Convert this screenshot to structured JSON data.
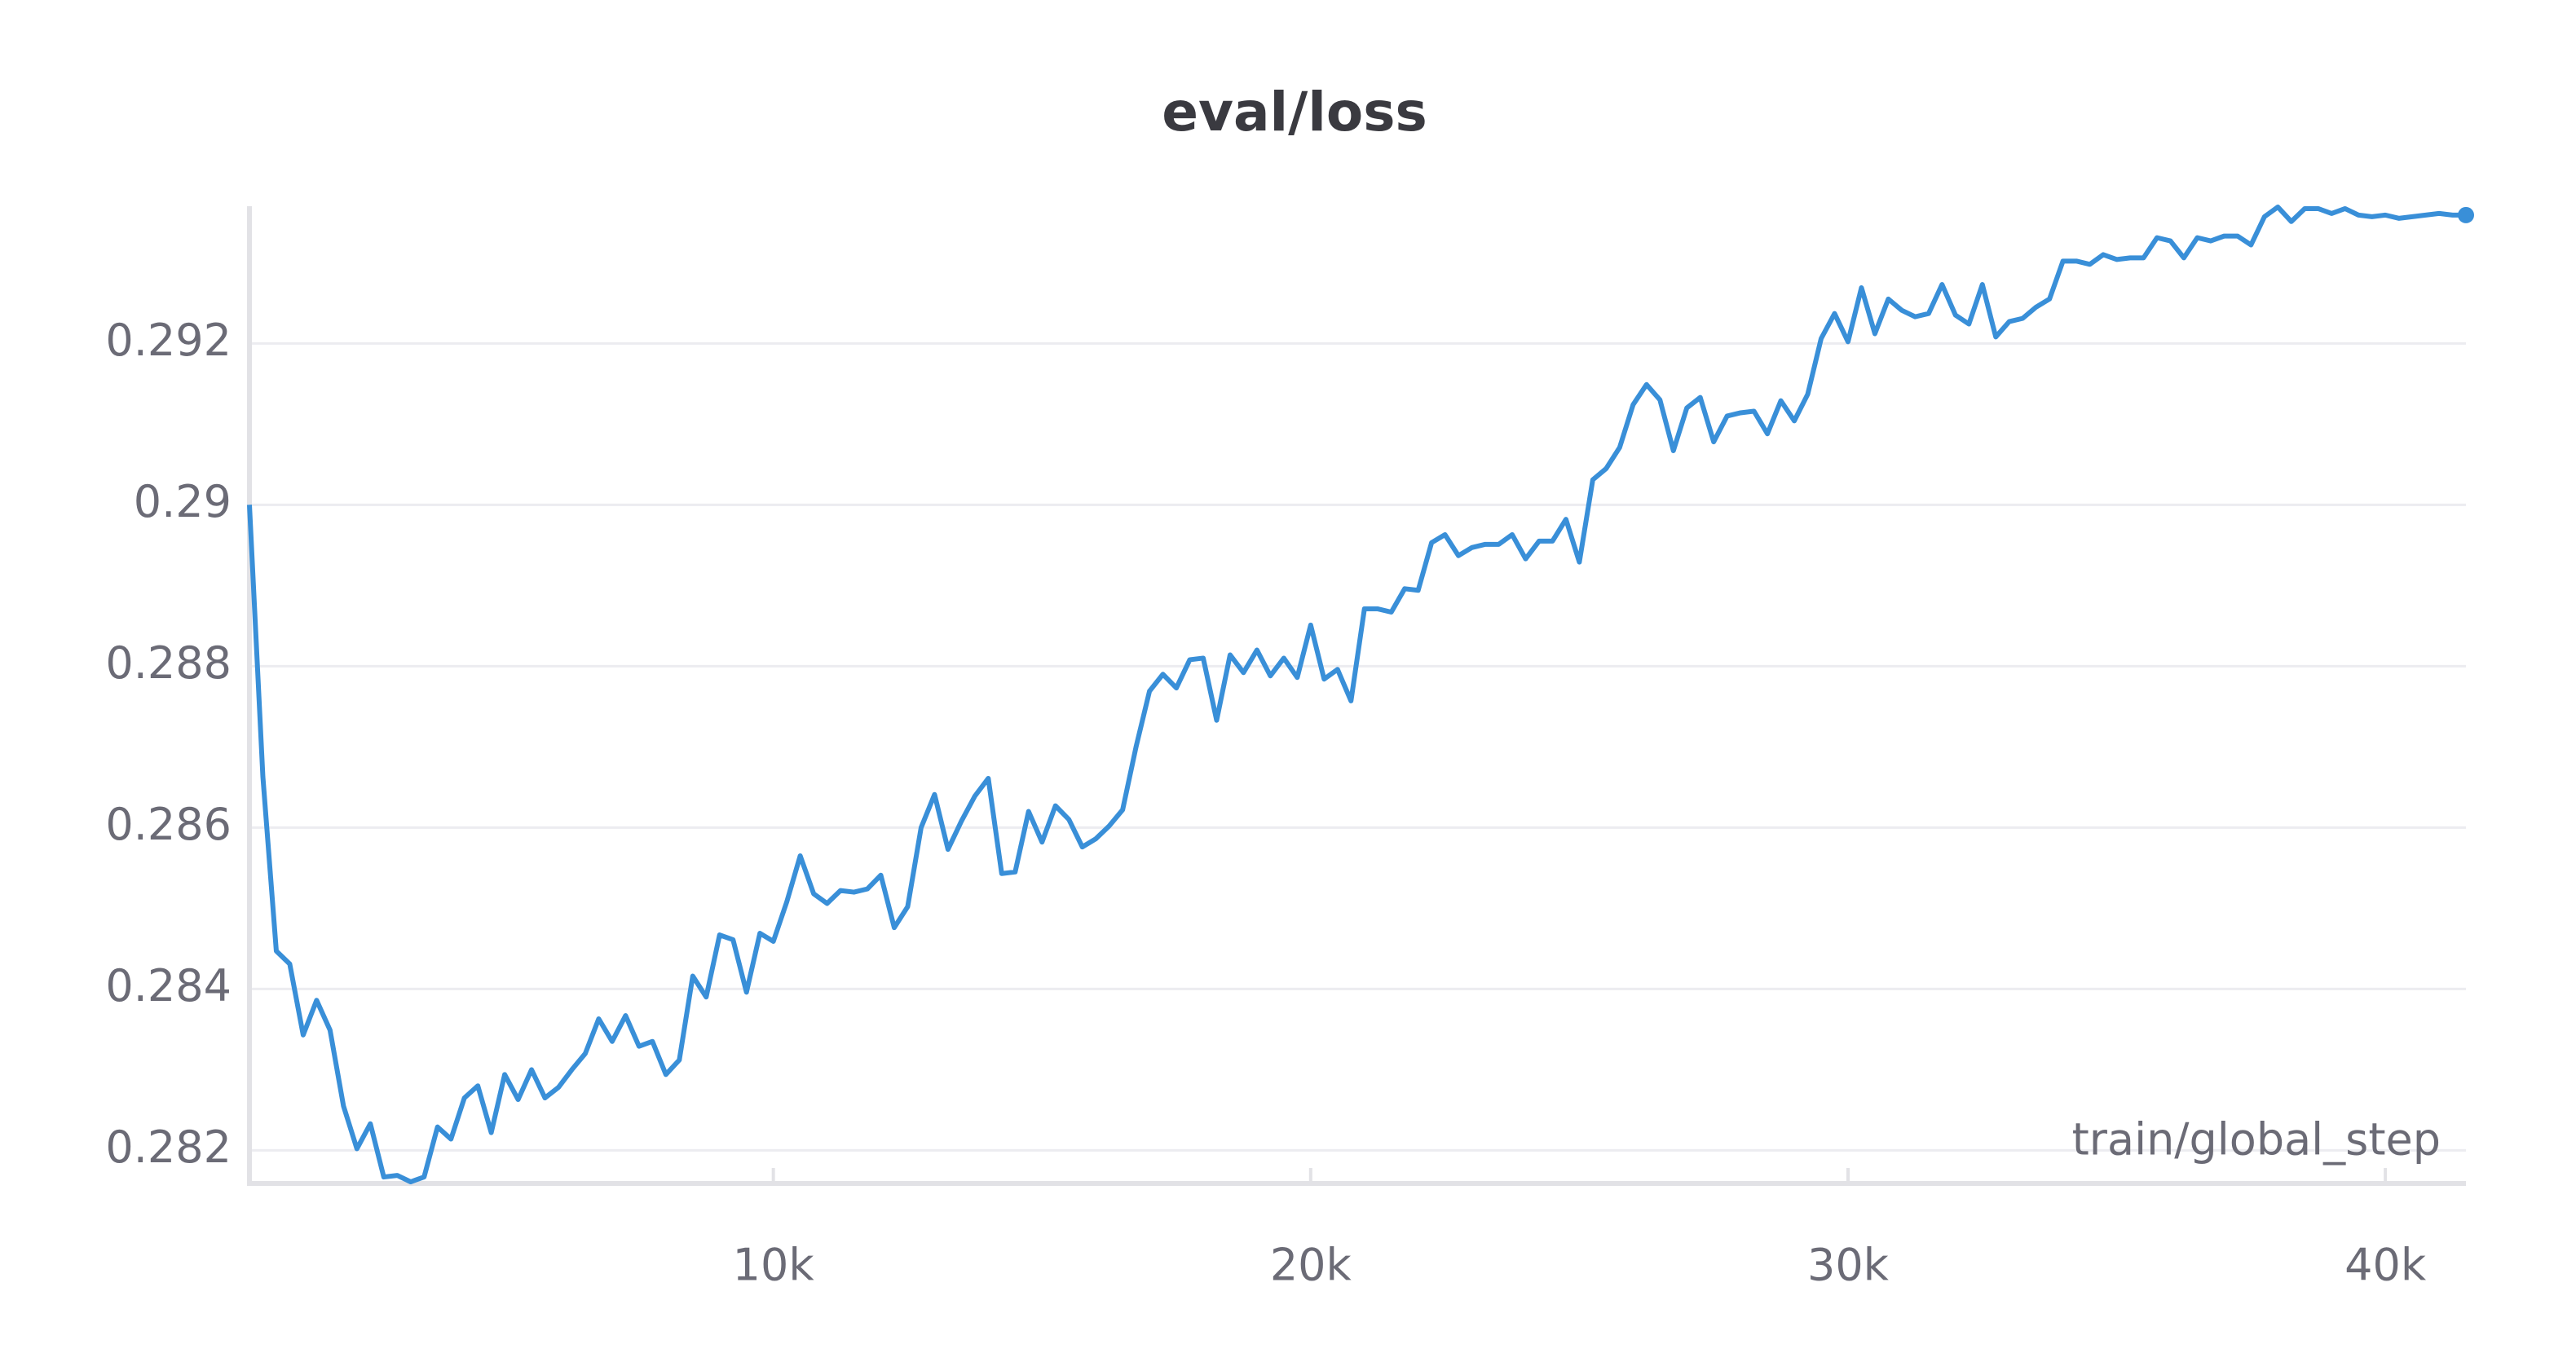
{
  "chart_data": {
    "type": "line",
    "title": "eval/loss",
    "x_label": "train/global_step",
    "x": [
      250,
      500,
      750,
      1000,
      1250,
      1500,
      1750,
      2000,
      2250,
      2500,
      2750,
      3000,
      3250,
      3500,
      3750,
      4000,
      4250,
      4500,
      4750,
      5000,
      5250,
      5500,
      5750,
      6000,
      6250,
      6500,
      6750,
      7000,
      7250,
      7500,
      7750,
      8000,
      8250,
      8500,
      8750,
      9000,
      9250,
      9500,
      9750,
      10000,
      10250,
      10500,
      10750,
      11000,
      11250,
      11500,
      11750,
      12000,
      12250,
      12500,
      12750,
      13000,
      13250,
      13500,
      13750,
      14000,
      14250,
      14500,
      14750,
      15000,
      15250,
      15500,
      15750,
      16000,
      16250,
      16500,
      16750,
      17000,
      17250,
      17500,
      17750,
      18000,
      18250,
      18500,
      18750,
      19000,
      19250,
      19500,
      19750,
      20000,
      20250,
      20500,
      20750,
      21000,
      21250,
      21500,
      21750,
      22000,
      22250,
      22500,
      22750,
      23000,
      23250,
      23500,
      23750,
      24000,
      24250,
      24500,
      24750,
      25000,
      25250,
      25500,
      25750,
      26000,
      26250,
      26500,
      26750,
      27000,
      27250,
      27500,
      27750,
      28000,
      28250,
      28500,
      28750,
      29000,
      29250,
      29500,
      29750,
      30000,
      30250,
      30500,
      30750,
      31000,
      31250,
      31500,
      31750,
      32000,
      32250,
      32500,
      32750,
      33000,
      33250,
      33500,
      33750,
      34000,
      34250,
      34500,
      34750,
      35000,
      35250,
      35500,
      35750,
      36000,
      36250,
      36500,
      36750,
      37000,
      37250,
      37500,
      37750,
      38000,
      38250,
      38500,
      38750,
      39000,
      39250,
      39500,
      39750,
      40000,
      40250,
      40500,
      40750,
      41000,
      41250,
      41500
    ],
    "series": [
      {
        "name": "eval/loss",
        "color": "#398fd8",
        "values": [
          0.29,
          0.28663,
          0.28447,
          0.28431,
          0.28343,
          0.28386,
          0.28349,
          0.28255,
          0.28202,
          0.28233,
          0.28167,
          0.28169,
          0.28161,
          0.28167,
          0.28229,
          0.28214,
          0.28265,
          0.2828,
          0.28222,
          0.28294,
          0.28263,
          0.283,
          0.28265,
          0.28278,
          0.283,
          0.2832,
          0.28363,
          0.28335,
          0.28367,
          0.28329,
          0.28335,
          0.28294,
          0.28312,
          0.28416,
          0.2839,
          0.28467,
          0.28461,
          0.28396,
          0.28469,
          0.28459,
          0.28508,
          0.28565,
          0.28518,
          0.28506,
          0.28522,
          0.2852,
          0.28524,
          0.28541,
          0.28476,
          0.28502,
          0.286,
          0.28641,
          0.28573,
          0.28608,
          0.28639,
          0.28661,
          0.28543,
          0.28545,
          0.2862,
          0.28582,
          0.28627,
          0.2861,
          0.28576,
          0.28586,
          0.28602,
          0.28622,
          0.287,
          0.28769,
          0.2879,
          0.28773,
          0.28808,
          0.2881,
          0.28733,
          0.28814,
          0.28792,
          0.2882,
          0.28788,
          0.2881,
          0.28786,
          0.28851,
          0.28784,
          0.28796,
          0.28757,
          0.28871,
          0.28871,
          0.28867,
          0.28896,
          0.28894,
          0.28953,
          0.28963,
          0.28937,
          0.28947,
          0.28951,
          0.28951,
          0.28963,
          0.28933,
          0.28955,
          0.28955,
          0.28982,
          0.28929,
          0.29031,
          0.29045,
          0.29071,
          0.29124,
          0.29149,
          0.2913,
          0.29067,
          0.2912,
          0.29133,
          0.29078,
          0.2911,
          0.29114,
          0.29116,
          0.29088,
          0.29129,
          0.29104,
          0.29137,
          0.29206,
          0.29237,
          0.29202,
          0.29269,
          0.29212,
          0.29255,
          0.29241,
          0.29233,
          0.29237,
          0.29273,
          0.29235,
          0.29224,
          0.29273,
          0.29208,
          0.29227,
          0.29231,
          0.29245,
          0.29255,
          0.29302,
          0.29302,
          0.29298,
          0.2931,
          0.29304,
          0.29306,
          0.29306,
          0.29331,
          0.29327,
          0.29306,
          0.29331,
          0.29327,
          0.29333,
          0.29333,
          0.29322,
          0.29357,
          0.29369,
          0.29351,
          0.29367,
          0.29367,
          0.29361,
          0.29367,
          0.29359,
          0.29357,
          0.29359,
          0.29355,
          0.29357,
          0.29359,
          0.29361,
          0.29359,
          0.29359
        ]
      }
    ],
    "xlim": [
      250,
      41500
    ],
    "xticks": [
      {
        "value": 10000,
        "label": "10k"
      },
      {
        "value": 20000,
        "label": "20k"
      },
      {
        "value": 30000,
        "label": "30k"
      },
      {
        "value": 40000,
        "label": "40k"
      }
    ],
    "ylim": [
      0.2816,
      0.2937
    ],
    "yticks": [
      0.282,
      0.284,
      0.286,
      0.288,
      0.29,
      0.292
    ],
    "grid": true
  }
}
